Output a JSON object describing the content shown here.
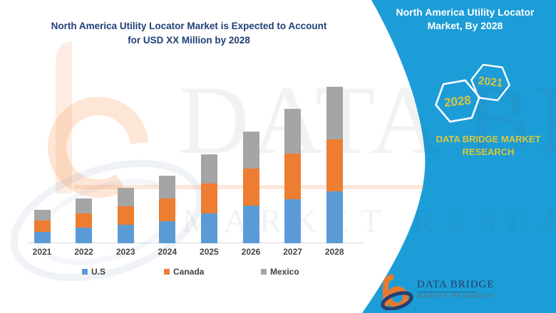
{
  "header": {
    "title_line1": "North America Utility Locator Market is Expected to Account",
    "title_line2": "for USD XX Million by 2028"
  },
  "side_panel": {
    "title_line1": "North America Utility Locator",
    "title_line2": "Market, By 2028",
    "hexagons": [
      {
        "label": "2028"
      },
      {
        "label": "2021"
      }
    ],
    "brand_line1": "DATA BRIDGE MARKET",
    "brand_line2": "RESEARCH",
    "colors": {
      "background": "#1c9dd8",
      "text": "#ffffff",
      "accent_yellow": "#d9c53f"
    }
  },
  "watermark": {
    "line1": "DATA BRIDGE",
    "line2": "MARKET RESEARCH"
  },
  "logo": {
    "name_text": "DATA BRIDGE",
    "sub_text": "MARKET RESEARCH"
  },
  "colors": {
    "headline_navy": "#1f4077",
    "axis_label_gray": "#454545"
  },
  "chart_data": {
    "type": "bar",
    "stacked": true,
    "title": "North America Utility Locator Market is Expected to Account for USD XX Million by 2028",
    "categories": [
      "2021",
      "2022",
      "2023",
      "2024",
      "2025",
      "2026",
      "2027",
      "2028"
    ],
    "series": [
      {
        "name": "U.S",
        "color": "#5B9BD5",
        "values": [
          7.1,
          9.8,
          12.0,
          14.2,
          18.9,
          23.9,
          28.3,
          33.0
        ]
      },
      {
        "name": "Canada",
        "color": "#ED7D31",
        "values": [
          7.6,
          9.4,
          11.8,
          14.4,
          19.2,
          23.8,
          28.8,
          33.3
        ]
      },
      {
        "name": "Mexico",
        "color": "#A5A5A5",
        "values": [
          6.8,
          9.4,
          11.8,
          14.7,
          18.9,
          23.6,
          28.8,
          33.6
        ]
      }
    ],
    "xlabel": "",
    "ylabel": "",
    "ylim": [
      0,
      100
    ],
    "y_axis_visible": false,
    "grid": false,
    "legend_position": "bottom"
  }
}
